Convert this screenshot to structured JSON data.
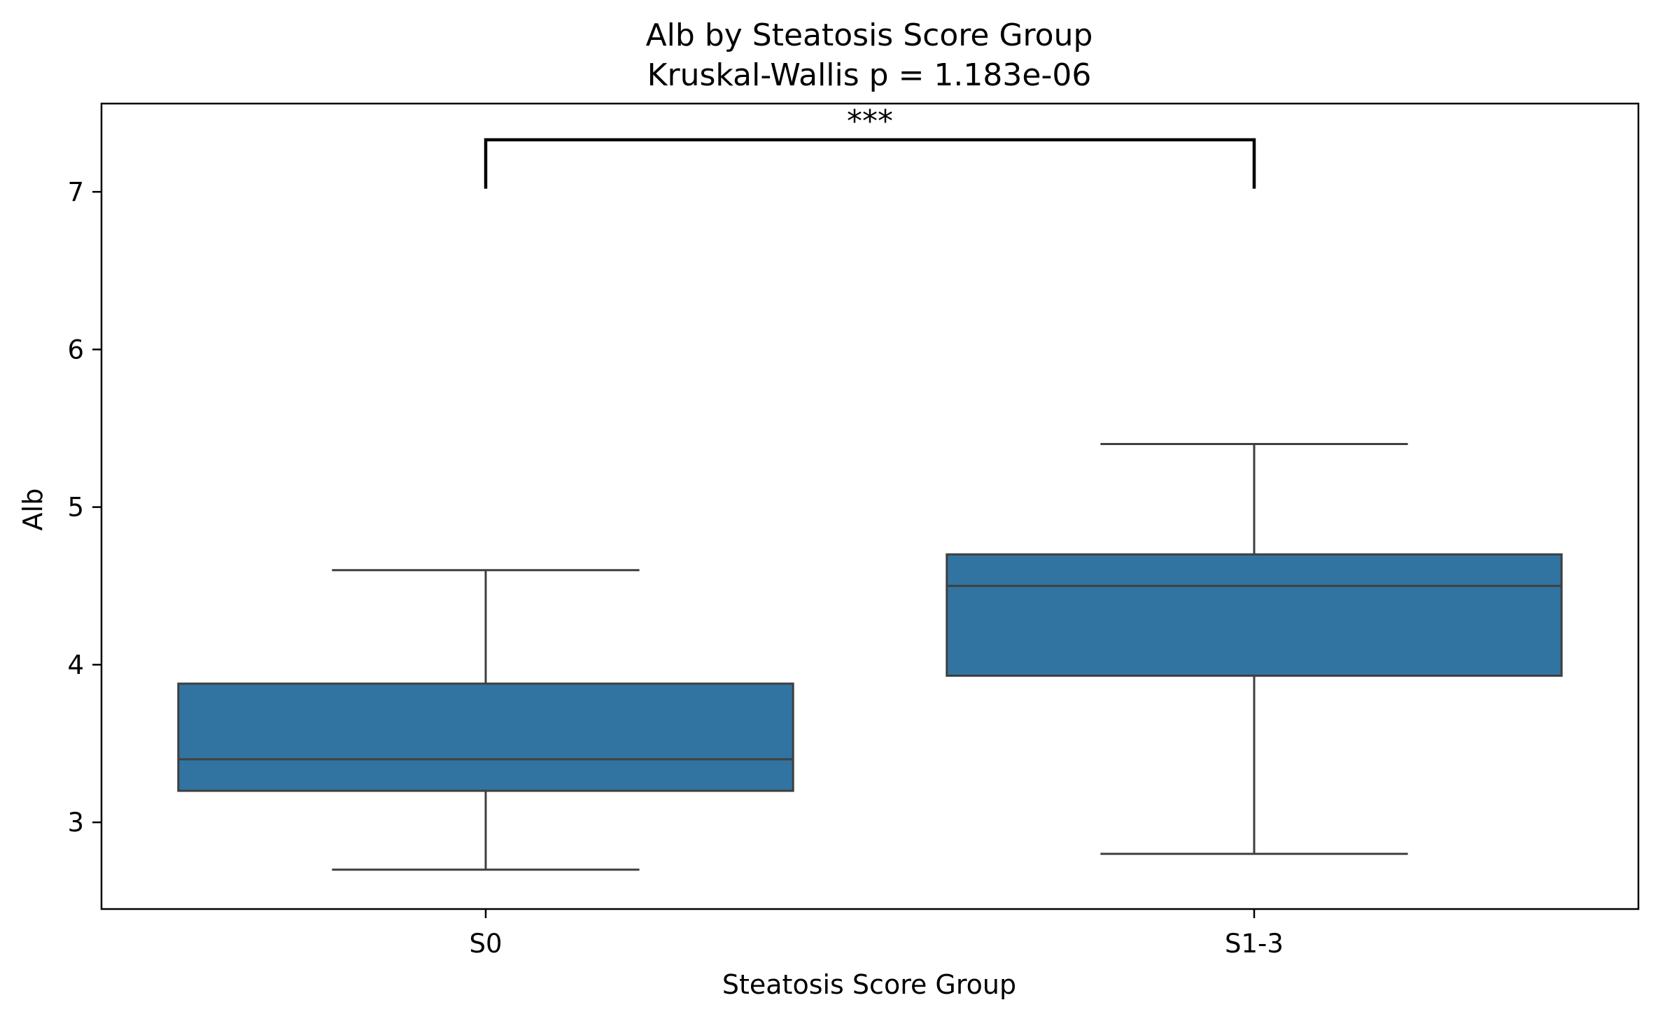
{
  "chart_data": {
    "type": "box",
    "title": "Alb by Steatosis Score Group",
    "subtitle": "Kruskal-Wallis p = 1.183e-06",
    "xlabel": "Steatosis Score Group",
    "ylabel": "Alb",
    "ylim": [
      2.45,
      7.56
    ],
    "yticks": [
      "3",
      "4",
      "5",
      "6",
      "7"
    ],
    "categories": [
      "S0",
      "S1-3"
    ],
    "boxes": [
      {
        "category": "S0",
        "whisker_low": 2.7,
        "q1": 3.2,
        "median": 3.4,
        "q3": 3.88,
        "whisker_high": 4.6
      },
      {
        "category": "S1-3",
        "whisker_low": 2.8,
        "q1": 3.93,
        "median": 4.5,
        "q3": 4.7,
        "whisker_high": 5.4
      }
    ],
    "significance": {
      "label": "***",
      "from": "S0",
      "to": "S1-3",
      "bracket_y": 7.33,
      "tip_y": 7.02
    },
    "box_color": "#3274a1",
    "line_color": "#3f3f3f",
    "grid": false,
    "legend": "none"
  }
}
